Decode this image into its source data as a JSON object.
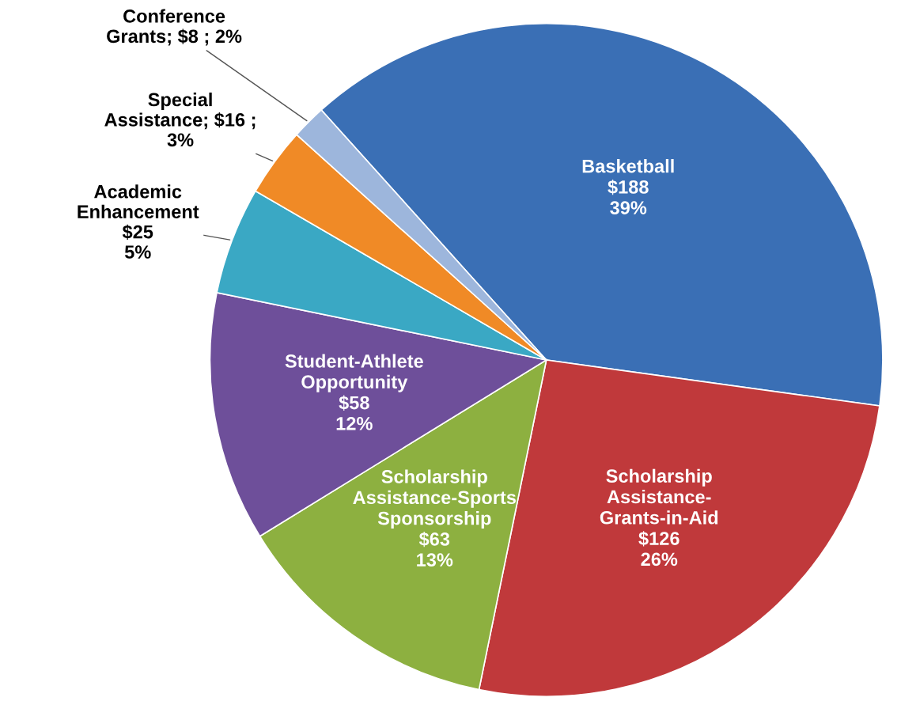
{
  "chart_data": {
    "type": "pie",
    "categories": [
      "Basketball",
      "Scholarship Assistance-Grants-in-Aid",
      "Scholarship Assistance-Sports Sponsorship",
      "Student-Athlete Opportunity",
      "Academic Enhancement",
      "Special Assistance",
      "Conference Grants"
    ],
    "values": [
      188,
      126,
      63,
      58,
      25,
      16,
      8
    ],
    "colors": [
      "#3a6fb5",
      "#c0393b",
      "#8db040",
      "#6e4f9a",
      "#3aa8c4",
      "#f08a26",
      "#9db6dc"
    ],
    "value_labels": [
      "$188\n39%",
      "$126\n26%",
      "$63\n13%",
      "$58\n12%",
      "$25\n5%",
      "$16 ;\n3%",
      "$8 ; 2%"
    ]
  }
}
